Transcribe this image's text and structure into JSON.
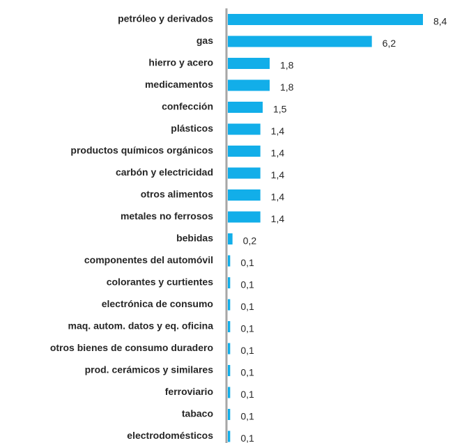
{
  "chart_data": {
    "type": "bar",
    "orientation": "horizontal",
    "color": "#12aee9",
    "categories": [
      "petróleo y derivados",
      "gas",
      "hierro y acero",
      "medicamentos",
      "confección",
      "plásticos",
      "productos químicos orgánicos",
      "carbón y electricidad",
      "otros alimentos",
      "metales no ferrosos",
      "bebidas",
      "componentes del automóvil",
      "colorantes y curtientes",
      "electrónica de consumo",
      "maq. autom. datos y eq. oficina",
      "otros bienes de consumo duradero",
      "prod. cerámicos y similares",
      "ferroviario",
      "tabaco",
      "electrodomésticos"
    ],
    "values": [
      8.4,
      6.2,
      1.8,
      1.8,
      1.5,
      1.4,
      1.4,
      1.4,
      1.4,
      1.4,
      0.2,
      0.1,
      0.1,
      0.1,
      0.1,
      0.1,
      0.1,
      0.1,
      0.1,
      0.1
    ],
    "value_labels": [
      "8,4",
      "6,2",
      "1,8",
      "1,8",
      "1,5",
      "1,4",
      "1,4",
      "1,4",
      "1,4",
      "1,4",
      "0,2",
      "0,1",
      "0,1",
      "0,1",
      "0,1",
      "0,1",
      "0,1",
      "0,1",
      "0,1",
      "0,1"
    ]
  }
}
